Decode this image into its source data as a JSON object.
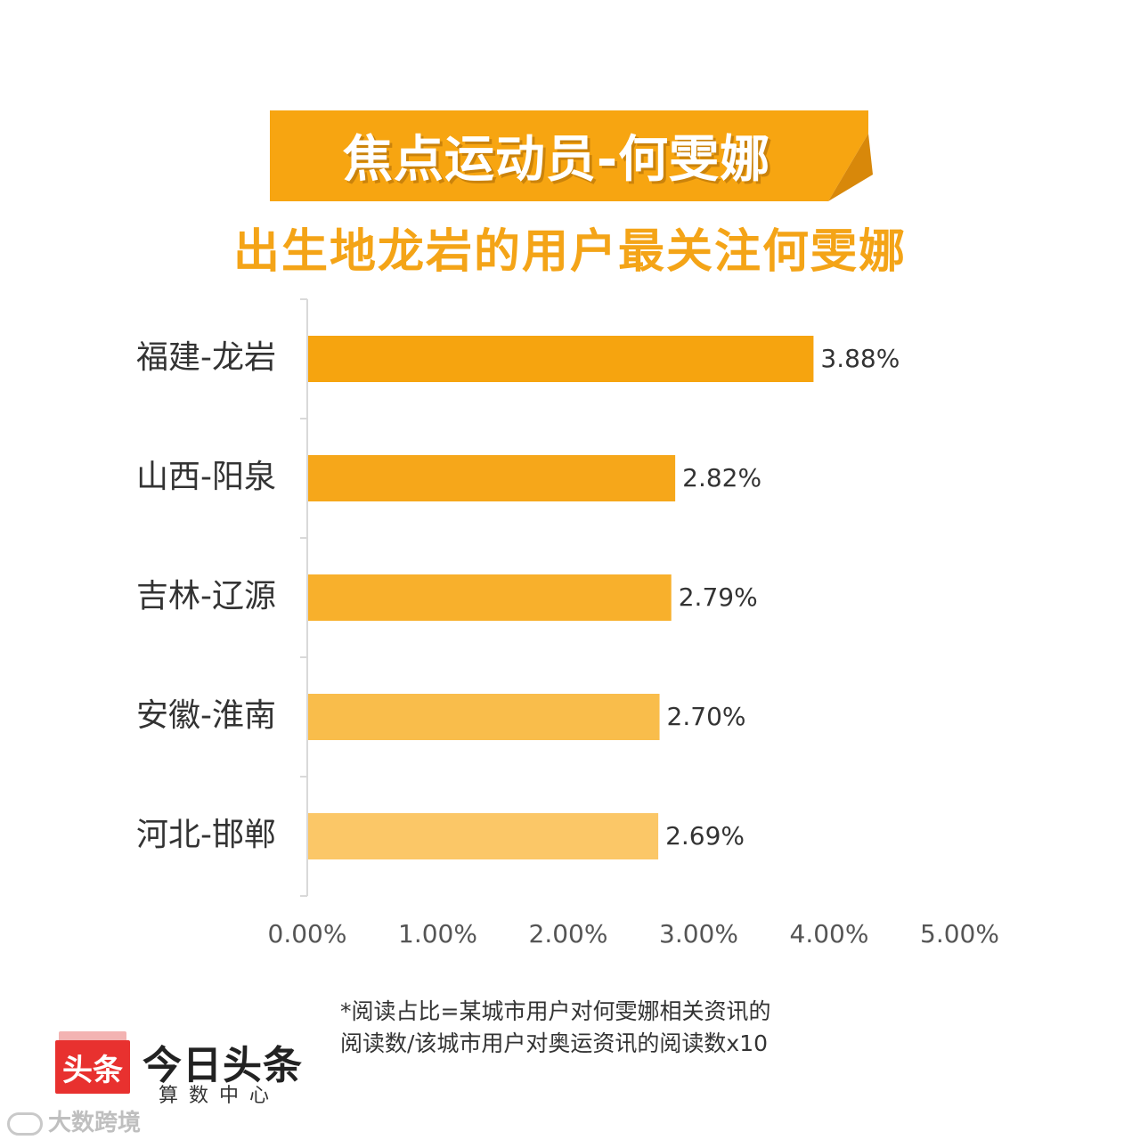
{
  "header": {
    "banner_title": "焦点运动员-何雯娜",
    "subtitle": "出生地龙岩的用户最关注何雯娜"
  },
  "chart_data": {
    "type": "bar",
    "orientation": "horizontal",
    "categories": [
      "福建-龙岩",
      "山西-阳泉",
      "吉林-辽源",
      "安徽-淮南",
      "河北-邯郸"
    ],
    "values": [
      3.88,
      2.82,
      2.79,
      2.7,
      2.69
    ],
    "value_labels": [
      "3.88%",
      "2.82%",
      "2.79%",
      "2.70%",
      "2.69%"
    ],
    "xlim": [
      0,
      5
    ],
    "x_ticks": [
      "0.00%",
      "1.00%",
      "2.00%",
      "3.00%",
      "4.00%",
      "5.00%"
    ],
    "grid": false,
    "colors": [
      "#f6a40f",
      "#f6a71a",
      "#f8b02c",
      "#f9bd4b",
      "#fbc767"
    ]
  },
  "footnote": {
    "line1": "*阅读占比=某城市用户对何雯娜相关资讯的",
    "line2": "阅读数/该城市用户对奥运资讯的阅读数x10"
  },
  "logo": {
    "badge": "头条",
    "name": "今日头条",
    "sub": "算数中心"
  },
  "watermark": "大数跨境",
  "colors": {
    "banner": "#f7a511",
    "banner_fold": "#e0900a",
    "subtitle": "#f4a417"
  }
}
